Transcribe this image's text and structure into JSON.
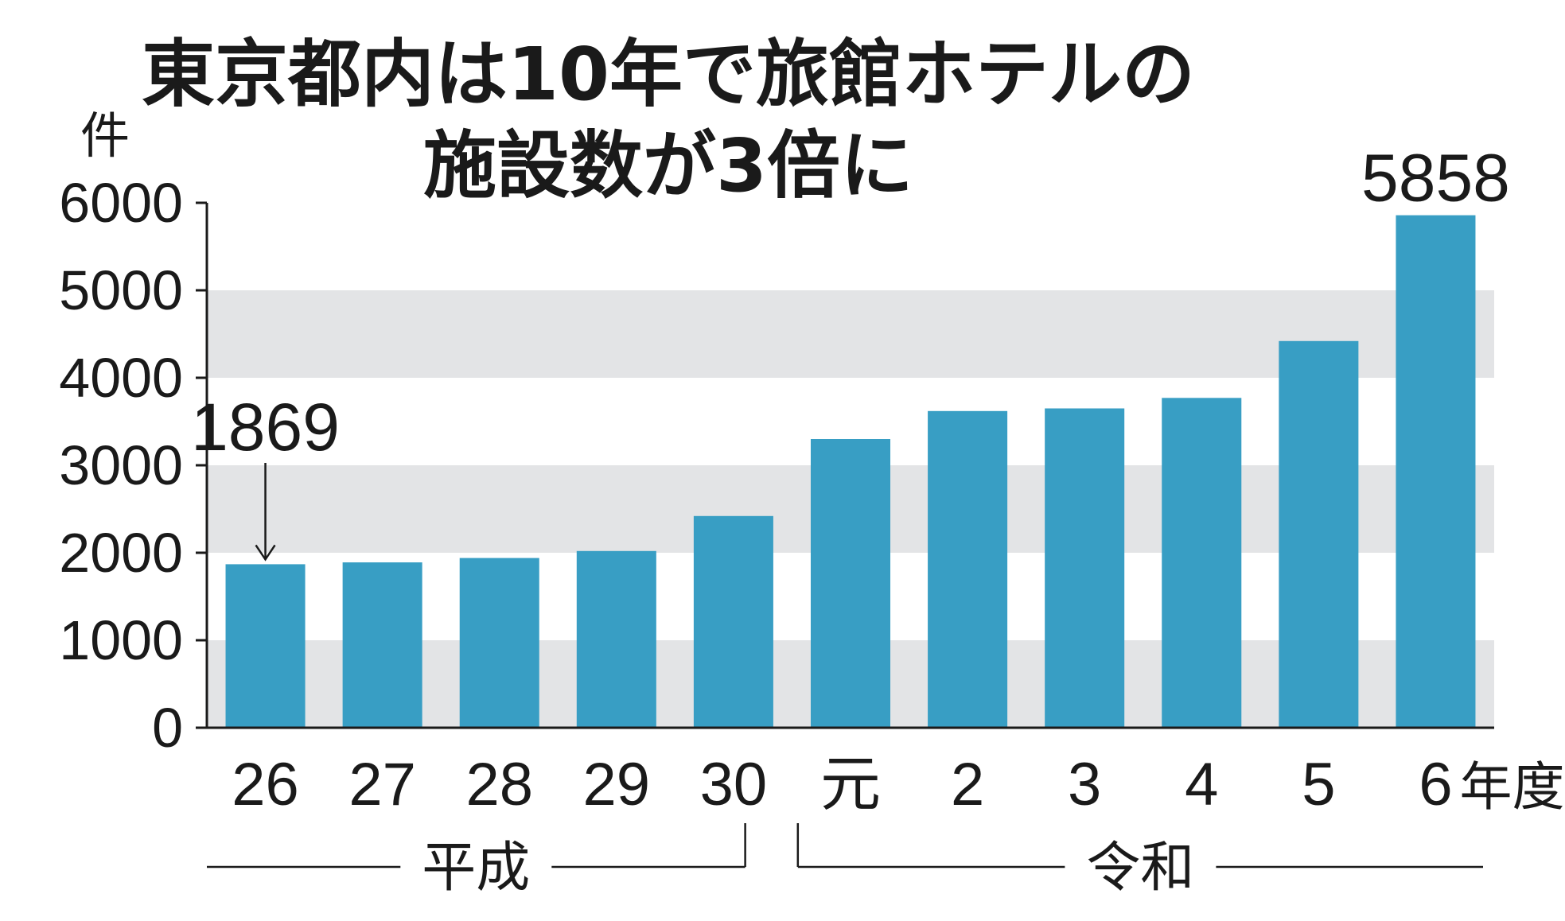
{
  "chart_data": {
    "type": "bar",
    "title_line1": "東京都内は10年で旅館ホテルの",
    "title_line2": "施設数が3倍に",
    "ylabel": "件",
    "ylim": [
      0,
      6000
    ],
    "yticks": [
      "0",
      "1000",
      "2000",
      "3000",
      "4000",
      "5000",
      "6000"
    ],
    "categories": [
      "26",
      "27",
      "28",
      "29",
      "30",
      "元",
      "2",
      "3",
      "4",
      "5",
      "6"
    ],
    "last_category_suffix": "年度",
    "values": [
      1869,
      1890,
      1940,
      2020,
      2420,
      3300,
      3620,
      3650,
      3770,
      4420,
      5858
    ],
    "annotations": [
      {
        "category_index": 0,
        "label": "1869",
        "arrow": true
      },
      {
        "category_index": 10,
        "label": "5858",
        "arrow": false
      }
    ],
    "eras": [
      {
        "label": "平成",
        "from_index": 0,
        "to_index": 4
      },
      {
        "label": "令和",
        "from_index": 5,
        "to_index": 10
      }
    ],
    "grid": "alternating bands",
    "colors": {
      "bar": "#389ec4",
      "band": "#e3e4e6",
      "axis": "#1a1a1a",
      "text": "#1a1a1a"
    }
  }
}
